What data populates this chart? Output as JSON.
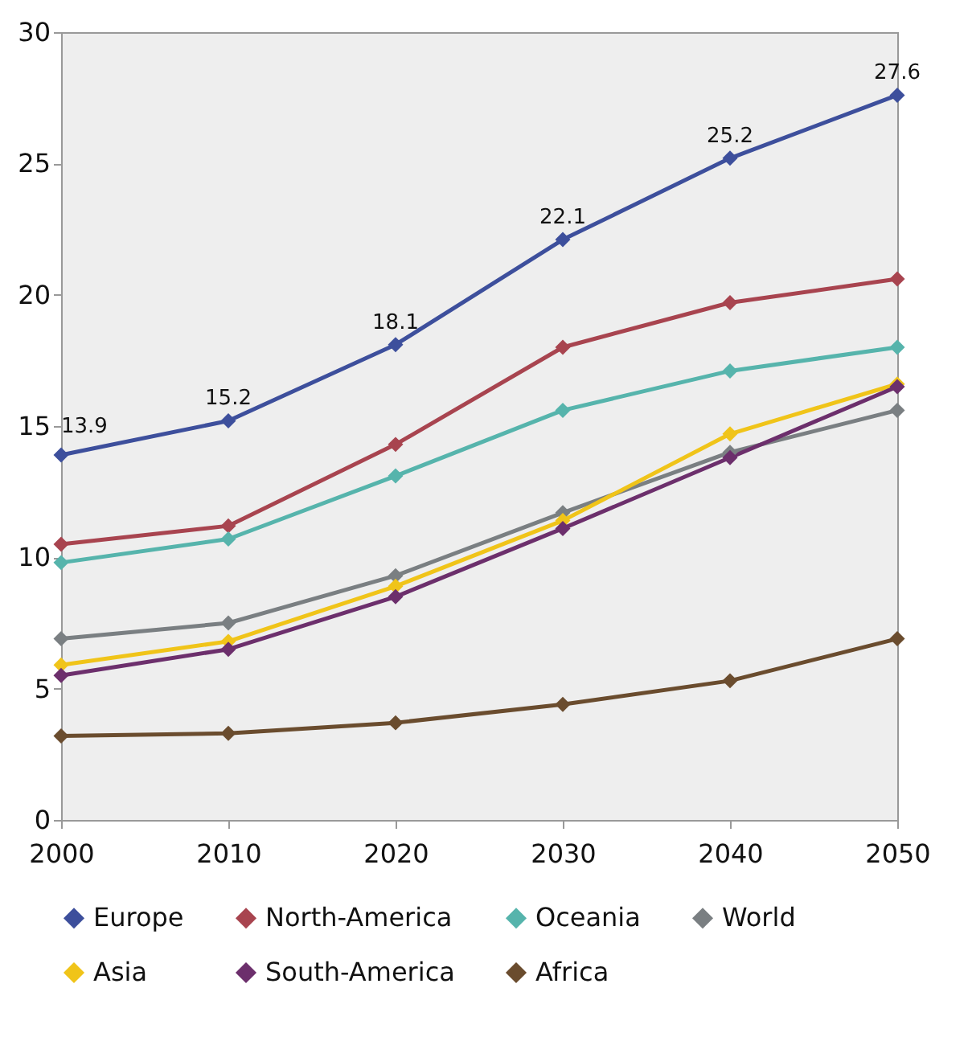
{
  "chart_data": {
    "type": "line",
    "x": [
      2000,
      2010,
      2020,
      2030,
      2040,
      2050
    ],
    "xlim": [
      2000,
      2050
    ],
    "xticks": [
      2000,
      2010,
      2020,
      2030,
      2040,
      2050
    ],
    "ylim": [
      0,
      30
    ],
    "yticks": [
      0,
      5,
      10,
      15,
      20,
      25,
      30
    ],
    "grid": false,
    "legend": "bottom",
    "marker": "diamond",
    "line_style": "solid",
    "series": [
      {
        "name": "Europe",
        "color": "#3d4f9c",
        "values": [
          13.9,
          15.2,
          18.1,
          22.1,
          25.2,
          27.6
        ],
        "value_labels": [
          "13.9",
          "15.2",
          "18.1",
          "22.1",
          "25.2",
          "27.6"
        ]
      },
      {
        "name": "North-America",
        "color": "#a8444f",
        "values": [
          10.5,
          11.2,
          14.3,
          18.0,
          19.7,
          20.6
        ]
      },
      {
        "name": "Oceania",
        "color": "#56b4ac",
        "values": [
          9.8,
          10.7,
          13.1,
          15.6,
          17.1,
          18.0
        ]
      },
      {
        "name": "World",
        "color": "#7a7f82",
        "values": [
          6.9,
          7.5,
          9.3,
          11.7,
          14.0,
          15.6
        ]
      },
      {
        "name": "Asia",
        "color": "#f0c419",
        "values": [
          5.9,
          6.8,
          8.9,
          11.4,
          14.7,
          16.6
        ]
      },
      {
        "name": "South-America",
        "color": "#6c2f6c",
        "values": [
          5.5,
          6.5,
          8.5,
          11.1,
          13.8,
          16.5
        ]
      },
      {
        "name": "Africa",
        "color": "#6a4c2e",
        "values": [
          3.2,
          3.3,
          3.7,
          4.4,
          5.3,
          6.9
        ]
      }
    ]
  }
}
